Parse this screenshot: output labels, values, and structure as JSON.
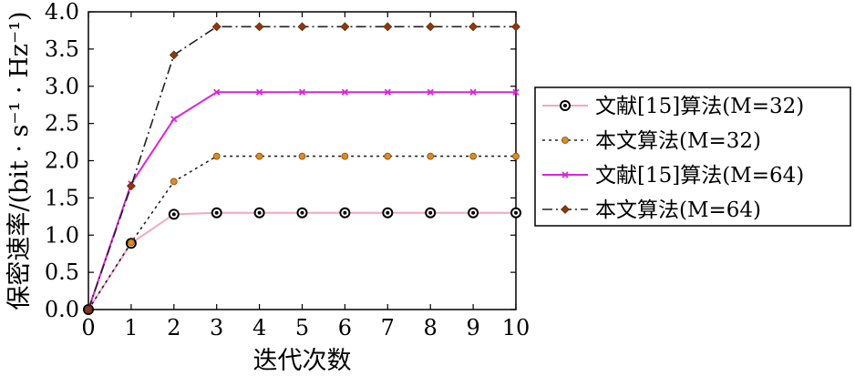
{
  "chart_data": {
    "type": "line",
    "xlabel": "迭代次数",
    "ylabel": "保密速率/(bit · s⁻¹ · Hz⁻¹)",
    "xlim": [
      0,
      10
    ],
    "ylim": [
      0,
      4
    ],
    "xticks": [
      0,
      1,
      2,
      3,
      4,
      5,
      6,
      7,
      8,
      9,
      10
    ],
    "yticks": [
      "0.0",
      "0.5",
      "1.0",
      "1.5",
      "2.0",
      "2.5",
      "3.0",
      "3.5",
      "4.0"
    ],
    "grid": false,
    "legend_position": "right",
    "x": [
      0,
      1,
      2,
      3,
      4,
      5,
      6,
      7,
      8,
      9,
      10
    ],
    "series": [
      {
        "name": "文献[15]算法(M=32)",
        "color": "#f4a6c6",
        "line": "solid",
        "marker": "circle-dot",
        "values": [
          0.0,
          0.89,
          1.28,
          1.3,
          1.3,
          1.3,
          1.3,
          1.3,
          1.3,
          1.3,
          1.3
        ]
      },
      {
        "name": "本文算法(M=32)",
        "color": "#222222",
        "marker_color": "#e08a1e",
        "line": "dotted",
        "marker": "filled-circle",
        "values": [
          0.0,
          0.9,
          1.72,
          2.06,
          2.06,
          2.06,
          2.06,
          2.06,
          2.06,
          2.06,
          2.06
        ]
      },
      {
        "name": "文献[15]算法(M=64)",
        "color": "#dd22dd",
        "line": "solid",
        "marker": "x",
        "values": [
          0.0,
          1.69,
          2.56,
          2.92,
          2.92,
          2.92,
          2.92,
          2.92,
          2.92,
          2.92,
          2.92
        ]
      },
      {
        "name": "本文算法(M=64)",
        "color": "#222222",
        "marker_color": "#8b3a0e",
        "line": "dashdot",
        "marker": "diamond",
        "values": [
          0.0,
          1.66,
          3.42,
          3.8,
          3.8,
          3.8,
          3.8,
          3.8,
          3.8,
          3.8,
          3.8
        ]
      }
    ]
  }
}
